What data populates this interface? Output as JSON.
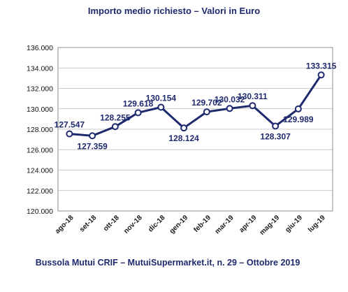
{
  "chart_data": {
    "type": "line",
    "title": "Importo medio richiesto – Valori in Euro",
    "footer": "Bussola Mutui CRIF – MutuiSupermarket.it, n. 29 – Ottobre 2019",
    "categories": [
      "ago-18",
      "set-18",
      "ott-18",
      "nov-18",
      "dic-18",
      "gen-19",
      "feb-19",
      "mar-19",
      "apr-19",
      "mag-19",
      "giu-19",
      "lug-19"
    ],
    "values": [
      127547,
      127359,
      128255,
      129618,
      130154,
      128124,
      129702,
      130032,
      130311,
      128307,
      129989,
      133315
    ],
    "value_labels": [
      "127.547",
      "127.359",
      "128.255",
      "129.618",
      "130.154",
      "128.124",
      "129.702",
      "130.032",
      "130.311",
      "128.307",
      "129.989",
      "133.315"
    ],
    "ylim": [
      120000,
      136000
    ],
    "yticks": [
      120000,
      122000,
      124000,
      126000,
      128000,
      130000,
      132000,
      134000,
      136000
    ],
    "ytick_labels": [
      "120.000",
      "122.000",
      "124.000",
      "126.000",
      "128.000",
      "130.000",
      "132.000",
      "134.000",
      "136.000"
    ],
    "grid": true,
    "line_color": "#1f2a6e"
  }
}
